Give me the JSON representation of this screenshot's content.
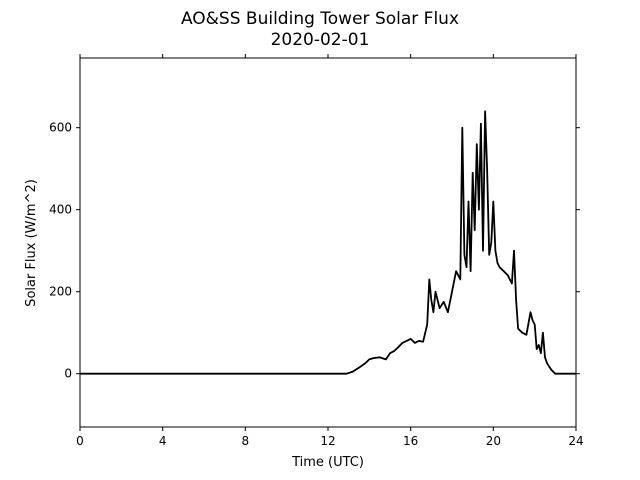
{
  "chart_data": {
    "type": "line",
    "title": "AO&SS Building Tower Solar Flux",
    "subtitle": "2020-02-01",
    "xlabel": "Time (UTC)",
    "ylabel": "Solar Flux (W/m^2)",
    "xlim": [
      0,
      24
    ],
    "ylim": [
      -130,
      770
    ],
    "xticks": [
      0,
      4,
      8,
      12,
      16,
      20,
      24
    ],
    "yticks": [
      0,
      200,
      400,
      600
    ],
    "grid": false,
    "legend": "none",
    "series": [
      {
        "color": "#000000",
        "x": [
          0,
          12.0,
          12.9,
          13.2,
          13.5,
          13.8,
          14.0,
          14.2,
          14.5,
          14.8,
          15.0,
          15.2,
          15.4,
          15.6,
          15.8,
          16.0,
          16.2,
          16.4,
          16.6,
          16.8,
          16.9,
          17.0,
          17.1,
          17.2,
          17.4,
          17.6,
          17.8,
          18.0,
          18.2,
          18.4,
          18.5,
          18.6,
          18.7,
          18.8,
          18.9,
          19.0,
          19.1,
          19.2,
          19.3,
          19.4,
          19.5,
          19.6,
          19.7,
          19.8,
          19.9,
          20.0,
          20.1,
          20.2,
          20.3,
          20.5,
          20.7,
          20.9,
          21.0,
          21.1,
          21.2,
          21.4,
          21.6,
          21.8,
          21.9,
          22.0,
          22.1,
          22.2,
          22.3,
          22.4,
          22.5,
          22.6,
          22.8,
          23.0,
          23.2,
          23.5,
          24.0
        ],
        "y": [
          0,
          0,
          0,
          5,
          15,
          25,
          35,
          38,
          40,
          35,
          50,
          55,
          65,
          75,
          80,
          85,
          75,
          80,
          78,
          120,
          230,
          180,
          150,
          200,
          160,
          175,
          150,
          200,
          250,
          230,
          600,
          290,
          260,
          420,
          250,
          490,
          350,
          560,
          400,
          610,
          300,
          640,
          500,
          290,
          320,
          420,
          300,
          270,
          260,
          250,
          240,
          220,
          300,
          180,
          110,
          100,
          95,
          150,
          130,
          120,
          60,
          70,
          50,
          100,
          40,
          25,
          10,
          0,
          0,
          0,
          0
        ]
      }
    ]
  }
}
